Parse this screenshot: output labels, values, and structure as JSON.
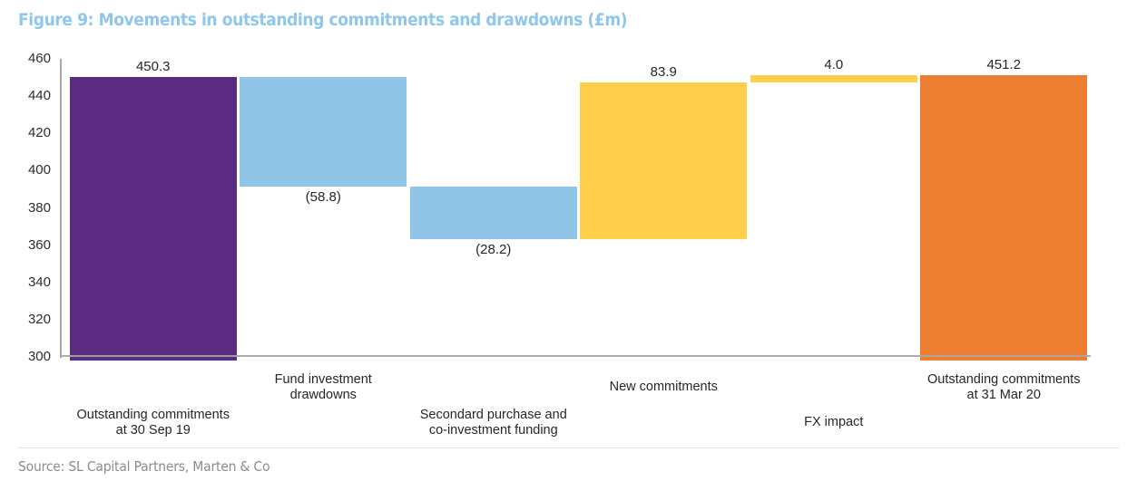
{
  "figure": {
    "title": "Figure 9: Movements in outstanding commitments and drawdowns (£m)",
    "source": "Source: SL Capital Partners, Marten & Co"
  },
  "colors": {
    "title": "#8FC7EC",
    "axis": "#A6A6A6",
    "label_text": "#262626",
    "source_text": "#8C8C8C",
    "divider": "#E2E2E2",
    "purple": "#5B2C81",
    "light_blue": "#90C5E8",
    "yellow": "#FFCE4B",
    "orange": "#EC7D31"
  },
  "chart_data": {
    "type": "bar",
    "subtype": "waterfall",
    "title": "Figure 9: Movements in outstanding commitments and drawdowns (£m)",
    "xlabel": "",
    "ylabel": "",
    "ylim": [
      300,
      460
    ],
    "yticks": [
      460,
      440,
      420,
      400,
      380,
      360,
      340,
      320,
      300
    ],
    "grid": false,
    "legend": false,
    "categories": [
      "Outstanding commitments at 30 Sep 19",
      "Fund investment drawdowns",
      "Secondard purchase and co-investment funding",
      "New commitments",
      "FX impact",
      "Outstanding commitments at 31 Mar 20"
    ],
    "bars": [
      {
        "category": "Outstanding commitments at 30 Sep 19",
        "label_lines": [
          "Outstanding commitments",
          "at 30 Sep 19"
        ],
        "category_row": "lower",
        "value": 450.3,
        "value_display": "450.3",
        "value_label_pos": "above",
        "start": 300,
        "end": 450.3,
        "color": "#5B2C81"
      },
      {
        "category": "Fund investment drawdowns",
        "label_lines": [
          "Fund investment",
          "drawdowns"
        ],
        "category_row": "upper",
        "value": -58.8,
        "value_display": "(58.8)",
        "value_label_pos": "below",
        "start": 450.3,
        "end": 391.5,
        "color": "#90C5E8"
      },
      {
        "category": "Secondard purchase and co-investment funding",
        "label_lines": [
          "Secondard purchase and",
          "co-investment funding"
        ],
        "category_row": "lower",
        "value": -28.2,
        "value_display": "(28.2)",
        "value_label_pos": "below",
        "start": 391.5,
        "end": 363.3,
        "color": "#90C5E8"
      },
      {
        "category": "New commitments",
        "label_lines": [
          "New commitments"
        ],
        "category_row": "upper",
        "value": 83.9,
        "value_display": "83.9",
        "value_label_pos": "above",
        "start": 363.3,
        "end": 447.2,
        "color": "#FFCE4B"
      },
      {
        "category": "FX impact",
        "label_lines": [
          "FX impact"
        ],
        "category_row": "lower",
        "value": 4.0,
        "value_display": "4.0",
        "value_label_pos": "above",
        "start": 447.2,
        "end": 451.2,
        "color": "#FFCE4B"
      },
      {
        "category": "Outstanding commitments at 31 Mar 20",
        "label_lines": [
          "Outstanding commitments",
          "at 31 Mar 20"
        ],
        "category_row": "upper",
        "value": 451.2,
        "value_display": "451.2",
        "value_label_pos": "above",
        "start": 300,
        "end": 451.2,
        "color": "#EC7D31"
      }
    ]
  }
}
